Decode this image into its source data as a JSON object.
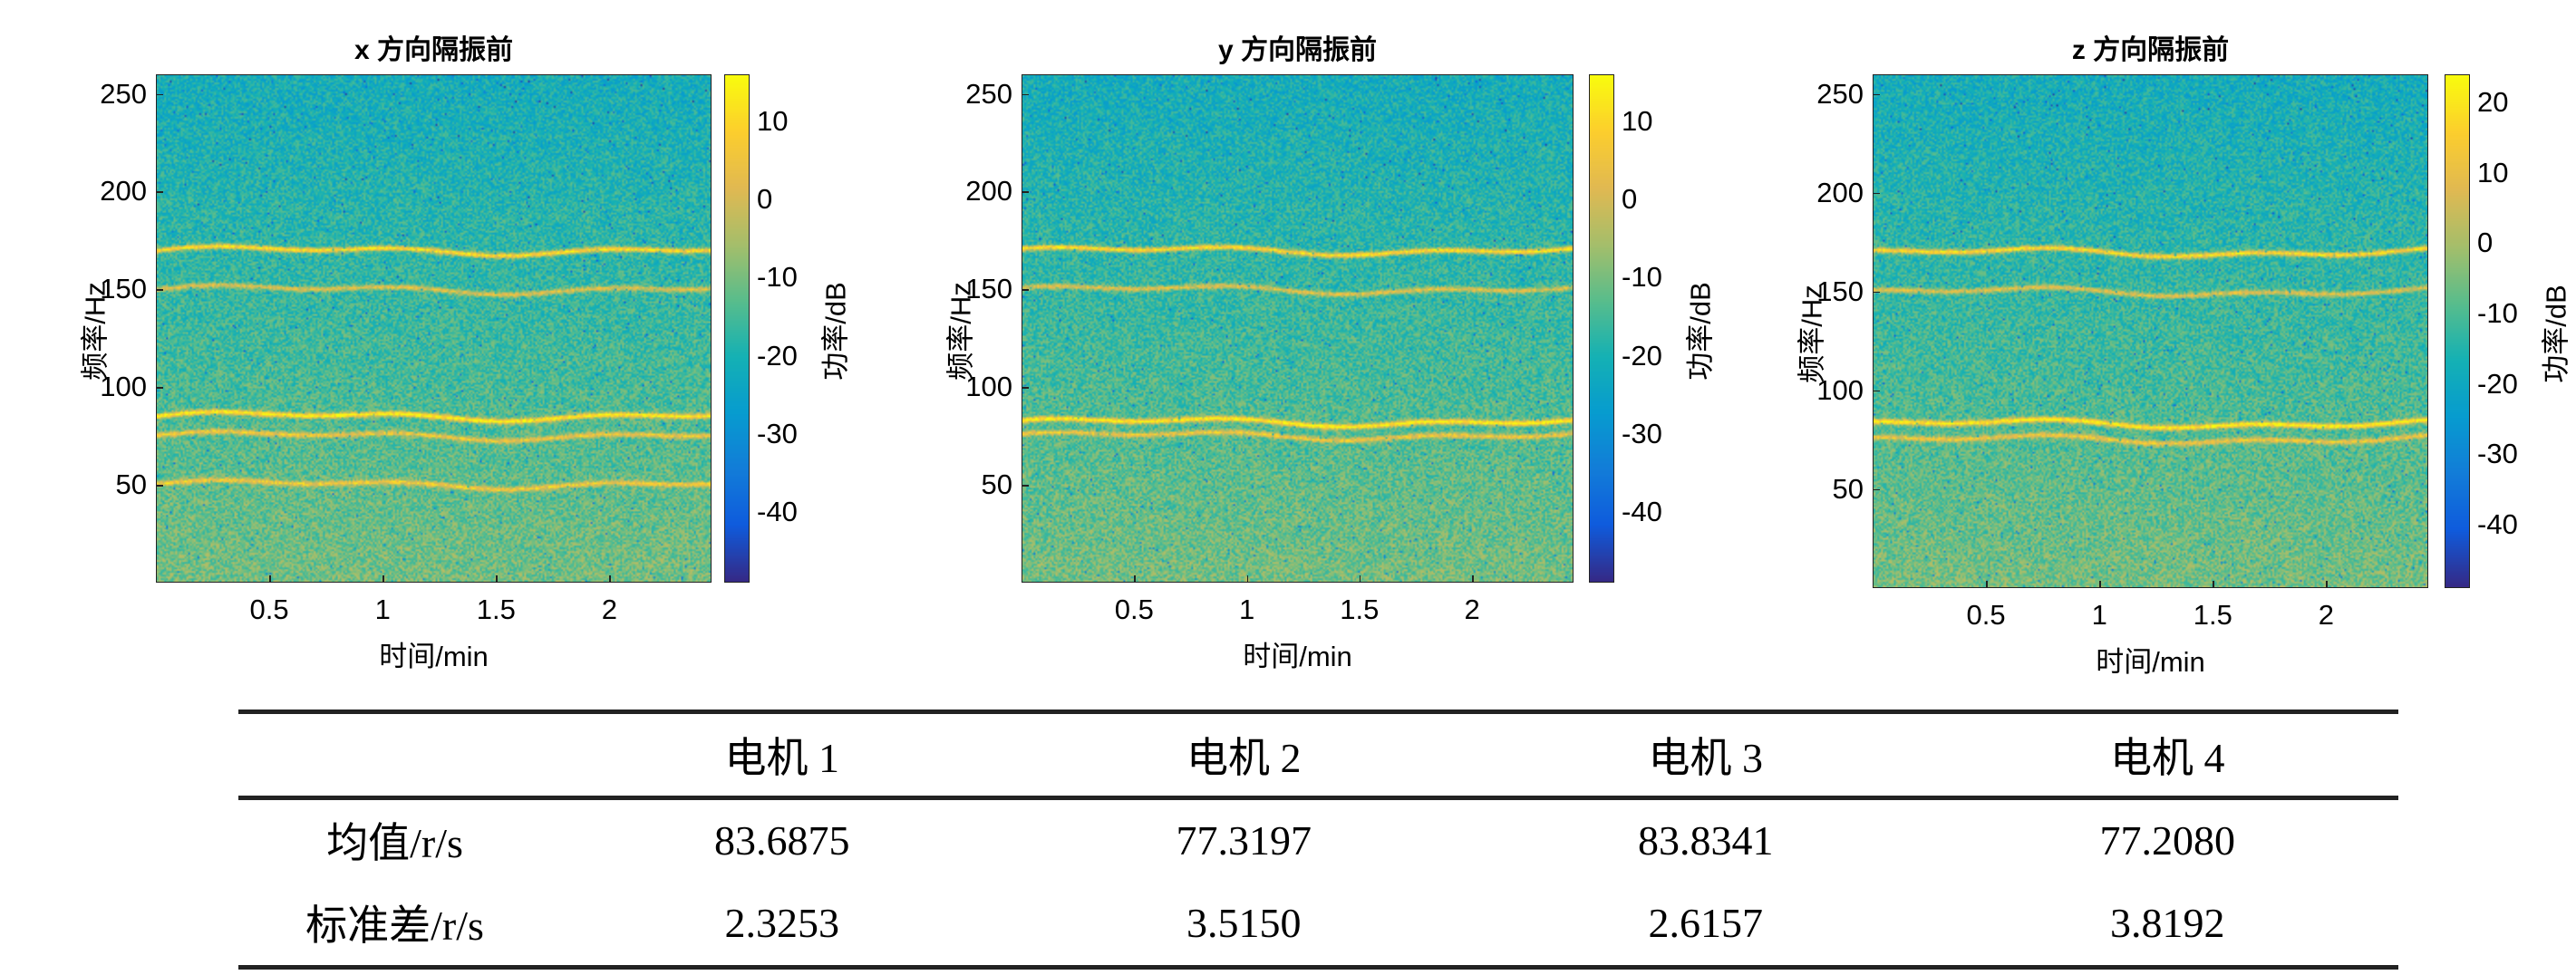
{
  "chart_data": [
    {
      "type": "heatmap",
      "title": "x 方向隔振前",
      "xlabel": "时间/min",
      "ylabel": "频率/Hz",
      "colorbar_label": "功率/dB",
      "xlim": [
        0,
        2.45
      ],
      "ylim": [
        0,
        260
      ],
      "xticks": [
        "0.5",
        "1",
        "1.5",
        "2"
      ],
      "yticks": [
        "50",
        "100",
        "150",
        "200",
        "250"
      ],
      "clim": [
        -49,
        16
      ],
      "cticks": [
        "10",
        "0",
        "-10",
        "-20",
        "-30",
        "-40"
      ],
      "colormap": "parula",
      "dominant_bands_hz": [
        170,
        150,
        85,
        75,
        50
      ]
    },
    {
      "type": "heatmap",
      "title": "y 方向隔振前",
      "xlabel": "时间/min",
      "ylabel": "频率/Hz",
      "colorbar_label": "功率/dB",
      "xlim": [
        0,
        2.45
      ],
      "ylim": [
        0,
        260
      ],
      "xticks": [
        "0.5",
        "1",
        "1.5",
        "2"
      ],
      "yticks": [
        "50",
        "100",
        "150",
        "200",
        "250"
      ],
      "clim": [
        -49,
        16
      ],
      "cticks": [
        "10",
        "0",
        "-10",
        "-20",
        "-30",
        "-40"
      ],
      "colormap": "parula",
      "dominant_bands_hz": [
        170,
        150,
        82,
        75
      ]
    },
    {
      "type": "heatmap",
      "title": "z 方向隔振前",
      "xlabel": "时间/min",
      "ylabel": "频率/Hz",
      "colorbar_label": "功率/dB",
      "xlim": [
        0,
        2.45
      ],
      "ylim": [
        0,
        260
      ],
      "xticks": [
        "0.5",
        "1",
        "1.5",
        "2"
      ],
      "yticks": [
        "50",
        "100",
        "150",
        "200",
        "250"
      ],
      "clim": [
        -49,
        24
      ],
      "cticks": [
        "20",
        "10",
        "0",
        "-10",
        "-20",
        "-30",
        "-40"
      ],
      "colormap": "parula",
      "dominant_bands_hz": [
        170,
        150,
        83,
        75
      ]
    }
  ],
  "table": {
    "headers": [
      "",
      "电机 1",
      "电机 2",
      "电机 3",
      "电机 4"
    ],
    "rows": [
      [
        "均值/r/s",
        "83.6875",
        "77.3197",
        "83.8341",
        "77.2080"
      ],
      [
        "标准差/r/s",
        "2.3253",
        "3.5150",
        "2.6157",
        "3.8192"
      ]
    ]
  }
}
